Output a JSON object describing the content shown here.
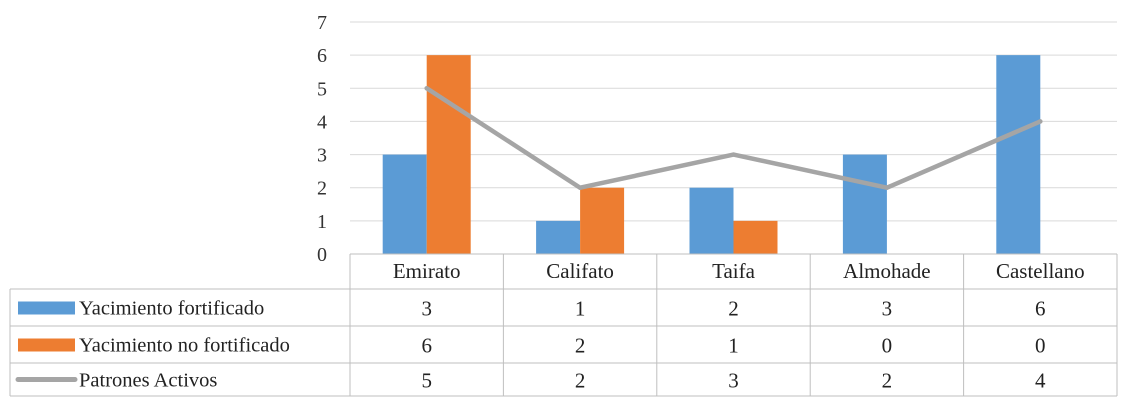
{
  "chart_data": {
    "type": "bar",
    "categories": [
      "Emirato",
      "Califato",
      "Taifa",
      "Almohade",
      "Castellano"
    ],
    "series": [
      {
        "name": "Yacimiento fortificado",
        "type": "bar",
        "values": [
          3,
          1,
          2,
          3,
          6
        ],
        "color": "#5b9bd5"
      },
      {
        "name": "Yacimiento no fortificado",
        "type": "bar",
        "values": [
          6,
          2,
          1,
          0,
          0
        ],
        "color": "#ed7d31"
      },
      {
        "name": "Patrones Activos",
        "type": "line",
        "values": [
          5,
          2,
          3,
          2,
          4
        ],
        "color": "#a5a5a5"
      }
    ],
    "ylim": [
      0,
      7
    ],
    "yticks": [
      0,
      1,
      2,
      3,
      4,
      5,
      6,
      7
    ],
    "grid": true,
    "legend": "data table below chart",
    "title": "",
    "xlabel": "",
    "ylabel": ""
  }
}
